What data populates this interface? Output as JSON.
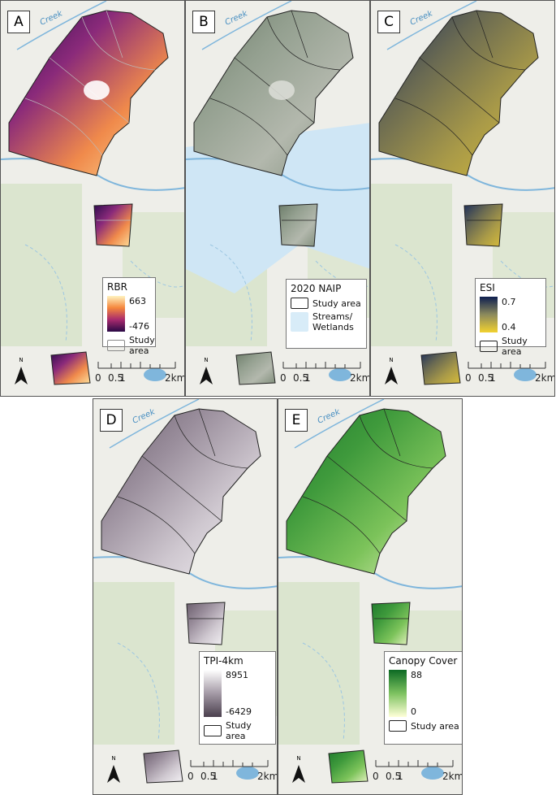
{
  "panels": [
    {
      "label": "A",
      "stream_label": "Creek",
      "north": "N",
      "legend": {
        "title": "RBR",
        "high": "663",
        "low": "-476",
        "items": [
          "Study area"
        ]
      },
      "scale_bar": [
        "0",
        "0.5",
        "1",
        "2km"
      ]
    },
    {
      "label": "B",
      "stream_label": "Creek",
      "north": "N",
      "legend": {
        "title": "2020 NAIP",
        "items": [
          "Study area",
          "Streams/ Wetlands"
        ]
      },
      "scale_bar": [
        "0",
        "0.5",
        "1",
        "2km"
      ]
    },
    {
      "label": "C",
      "stream_label": "Creek",
      "north": "N",
      "legend": {
        "title": "ESI",
        "high": "0.7",
        "low": "0.4",
        "items": [
          "Study area"
        ]
      },
      "scale_bar": [
        "0",
        "0.5",
        "1",
        "2km"
      ]
    },
    {
      "label": "D",
      "stream_label": "Creek",
      "north": "N",
      "legend": {
        "title": "TPI-4km",
        "high": "8951",
        "low": "-6429",
        "items": [
          "Study area"
        ]
      },
      "scale_bar": [
        "0",
        "0.5",
        "1",
        "2km"
      ]
    },
    {
      "label": "E",
      "stream_label": "Creek",
      "north": "N",
      "legend": {
        "title": "Canopy Cover",
        "high": "88",
        "low": "0",
        "items": [
          "Study area"
        ]
      },
      "scale_bar": [
        "0",
        "0.5",
        "1",
        "2km"
      ]
    }
  ]
}
